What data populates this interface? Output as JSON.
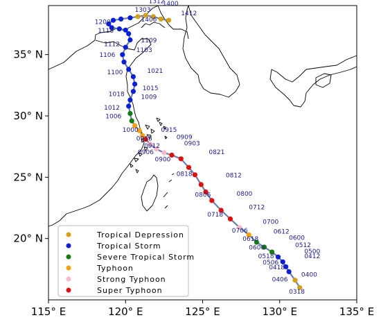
{
  "map": {
    "lon_range": [
      115,
      135
    ],
    "lat_range": [
      15,
      39
    ],
    "lat_ticks": [
      {
        "value": 35,
        "label": "35° N"
      },
      {
        "value": 30,
        "label": "30° N"
      },
      {
        "value": 25,
        "label": "25° N"
      },
      {
        "value": 20,
        "label": "20° N"
      }
    ],
    "lon_ticks": [
      {
        "value": 115,
        "label": "115° E"
      },
      {
        "value": 120,
        "label": "120° E"
      },
      {
        "value": 125,
        "label": "125° E"
      },
      {
        "value": 130,
        "label": "130° E"
      },
      {
        "value": 135,
        "label": "135° E"
      }
    ]
  },
  "legend": {
    "items": [
      {
        "key": "TD",
        "label": "Tropical Depression",
        "color": "#d4a017"
      },
      {
        "key": "TS",
        "label": "Tropical Storm",
        "color": "#0a1fd6"
      },
      {
        "key": "STS",
        "label": "Severe Tropical Storm",
        "color": "#137d13"
      },
      {
        "key": "TY",
        "label": "Typhoon",
        "color": "#f5a20a"
      },
      {
        "key": "STY",
        "label": "Strong Typhoon",
        "color": "#f7b9c9"
      },
      {
        "key": "SuperTY",
        "label": "Super Typhoon",
        "color": "#e01010"
      }
    ]
  },
  "track": {
    "line_color": "#6a7fa8",
    "points": [
      {
        "lon": 131.3,
        "lat": 16.0,
        "cat": "TD"
      },
      {
        "lon": 131.0,
        "lat": 16.6,
        "cat": "TD"
      },
      {
        "lon": 130.6,
        "lat": 17.3,
        "cat": "TS"
      },
      {
        "lon": 130.4,
        "lat": 17.7,
        "cat": "TS"
      },
      {
        "lon": 130.2,
        "lat": 18.1,
        "cat": "TS"
      },
      {
        "lon": 129.9,
        "lat": 18.5,
        "cat": "TS"
      },
      {
        "lon": 129.5,
        "lat": 18.9,
        "cat": "STS"
      },
      {
        "lon": 129.0,
        "lat": 19.3,
        "cat": "STS"
      },
      {
        "lon": 128.5,
        "lat": 19.7,
        "cat": "STS"
      },
      {
        "lon": 128.0,
        "lat": 20.3,
        "cat": "TY"
      },
      {
        "lon": 127.4,
        "lat": 20.9,
        "cat": "STY"
      },
      {
        "lon": 126.8,
        "lat": 21.6,
        "cat": "SuperTY"
      },
      {
        "lon": 126.2,
        "lat": 22.3,
        "cat": "SuperTY"
      },
      {
        "lon": 125.6,
        "lat": 23.1,
        "cat": "SuperTY"
      },
      {
        "lon": 125.2,
        "lat": 23.8,
        "cat": "SuperTY"
      },
      {
        "lon": 124.9,
        "lat": 24.4,
        "cat": "SuperTY"
      },
      {
        "lon": 124.5,
        "lat": 25.2,
        "cat": "SuperTY"
      },
      {
        "lon": 124.1,
        "lat": 25.8,
        "cat": "SuperTY"
      },
      {
        "lon": 123.6,
        "lat": 26.5,
        "cat": "SuperTY"
      },
      {
        "lon": 123.0,
        "lat": 26.8,
        "cat": "SuperTY"
      },
      {
        "lon": 122.5,
        "lat": 27.0,
        "cat": "STY"
      },
      {
        "lon": 122.0,
        "lat": 27.3,
        "cat": "STY"
      },
      {
        "lon": 121.6,
        "lat": 27.7,
        "cat": "STY"
      },
      {
        "lon": 121.3,
        "lat": 28.1,
        "cat": "SuperTY"
      },
      {
        "lon": 121.1,
        "lat": 28.4,
        "cat": "TY"
      },
      {
        "lon": 120.9,
        "lat": 28.8,
        "cat": "TY"
      },
      {
        "lon": 120.6,
        "lat": 29.2,
        "cat": "TY"
      },
      {
        "lon": 120.4,
        "lat": 29.6,
        "cat": "STS"
      },
      {
        "lon": 120.3,
        "lat": 30.2,
        "cat": "STS"
      },
      {
        "lon": 120.2,
        "lat": 30.8,
        "cat": "TS"
      },
      {
        "lon": 120.3,
        "lat": 31.3,
        "cat": "TS"
      },
      {
        "lon": 120.5,
        "lat": 32.0,
        "cat": "TS"
      },
      {
        "lon": 120.6,
        "lat": 32.6,
        "cat": "TS"
      },
      {
        "lon": 120.5,
        "lat": 33.2,
        "cat": "TS"
      },
      {
        "lon": 120.2,
        "lat": 33.8,
        "cat": "TS"
      },
      {
        "lon": 119.9,
        "lat": 34.4,
        "cat": "TS"
      },
      {
        "lon": 119.8,
        "lat": 35.0,
        "cat": "TS"
      },
      {
        "lon": 120.0,
        "lat": 35.6,
        "cat": "TS"
      },
      {
        "lon": 120.3,
        "lat": 36.2,
        "cat": "TS"
      },
      {
        "lon": 120.2,
        "lat": 36.7,
        "cat": "TS"
      },
      {
        "lon": 120.0,
        "lat": 37.0,
        "cat": "TS"
      },
      {
        "lon": 119.6,
        "lat": 37.1,
        "cat": "TS"
      },
      {
        "lon": 119.1,
        "lat": 37.2,
        "cat": "TS"
      },
      {
        "lon": 118.9,
        "lat": 37.5,
        "cat": "TS"
      },
      {
        "lon": 119.2,
        "lat": 37.8,
        "cat": "TS"
      },
      {
        "lon": 119.7,
        "lat": 37.9,
        "cat": "TS"
      },
      {
        "lon": 120.3,
        "lat": 38.0,
        "cat": "TS"
      },
      {
        "lon": 120.8,
        "lat": 38.1,
        "cat": "TD"
      },
      {
        "lon": 121.3,
        "lat": 38.2,
        "cat": "TD"
      },
      {
        "lon": 121.8,
        "lat": 38.1,
        "cat": "TD"
      },
      {
        "lon": 122.3,
        "lat": 37.9,
        "cat": "TD"
      },
      {
        "lon": 122.8,
        "lat": 37.8,
        "cat": "TD"
      }
    ]
  },
  "time_labels": [
    {
      "text": "0318",
      "lon": 130.6,
      "lat": 15.5
    },
    {
      "text": "0400",
      "lon": 131.4,
      "lat": 16.9
    },
    {
      "text": "0406",
      "lon": 129.5,
      "lat": 16.5
    },
    {
      "text": "0412",
      "lon": 131.6,
      "lat": 18.4
    },
    {
      "text": "0418",
      "lon": 129.3,
      "lat": 17.5
    },
    {
      "text": "0500",
      "lon": 131.6,
      "lat": 18.8
    },
    {
      "text": "0506",
      "lon": 128.9,
      "lat": 17.9
    },
    {
      "text": "0512",
      "lon": 131.0,
      "lat": 19.3
    },
    {
      "text": "0518",
      "lon": 128.6,
      "lat": 18.4
    },
    {
      "text": "0600",
      "lon": 130.6,
      "lat": 19.9
    },
    {
      "text": "0606",
      "lon": 128.0,
      "lat": 19.1
    },
    {
      "text": "0612",
      "lon": 129.6,
      "lat": 20.4
    },
    {
      "text": "0618",
      "lon": 127.6,
      "lat": 19.8
    },
    {
      "text": "0700",
      "lon": 128.9,
      "lat": 21.2
    },
    {
      "text": "0706",
      "lon": 126.9,
      "lat": 20.5
    },
    {
      "text": "0712",
      "lon": 128.0,
      "lat": 22.4
    },
    {
      "text": "0718",
      "lon": 125.3,
      "lat": 21.8
    },
    {
      "text": "0800",
      "lon": 127.2,
      "lat": 23.5
    },
    {
      "text": "0806",
      "lon": 124.5,
      "lat": 23.4
    },
    {
      "text": "0812",
      "lon": 126.5,
      "lat": 25.0
    },
    {
      "text": "0818",
      "lon": 123.3,
      "lat": 25.1
    },
    {
      "text": "0821",
      "lon": 125.4,
      "lat": 26.9
    },
    {
      "text": "0900",
      "lon": 121.9,
      "lat": 26.3
    },
    {
      "text": "0903",
      "lon": 123.8,
      "lat": 27.6
    },
    {
      "text": "0906",
      "lon": 120.8,
      "lat": 26.9
    },
    {
      "text": "0909",
      "lon": 123.3,
      "lat": 28.1
    },
    {
      "text": "0912",
      "lon": 121.2,
      "lat": 27.4
    },
    {
      "text": "0915",
      "lon": 122.3,
      "lat": 28.7
    },
    {
      "text": "0918",
      "lon": 120.7,
      "lat": 28.0
    },
    {
      "text": "1000",
      "lon": 119.8,
      "lat": 28.7
    },
    {
      "text": "1006",
      "lon": 118.7,
      "lat": 29.8
    },
    {
      "text": "1012",
      "lon": 118.6,
      "lat": 30.5
    },
    {
      "text": "1018",
      "lon": 118.9,
      "lat": 31.6
    },
    {
      "text": "1009",
      "lon": 121.0,
      "lat": 31.4
    },
    {
      "text": "1015",
      "lon": 121.1,
      "lat": 32.1
    },
    {
      "text": "1021",
      "lon": 121.4,
      "lat": 33.5
    },
    {
      "text": "1100",
      "lon": 118.8,
      "lat": 33.4
    },
    {
      "text": "1106",
      "lon": 118.3,
      "lat": 34.8
    },
    {
      "text": "1112",
      "lon": 118.6,
      "lat": 35.7
    },
    {
      "text": "1103",
      "lon": 120.7,
      "lat": 35.2
    },
    {
      "text": "1109",
      "lon": 121.0,
      "lat": 36.0
    },
    {
      "text": "1118",
      "lon": 118.2,
      "lat": 36.8
    },
    {
      "text": "1200",
      "lon": 118.0,
      "lat": 37.5
    },
    {
      "text": "1303",
      "lon": 120.6,
      "lat": 38.5
    },
    {
      "text": "1312",
      "lon": 121.5,
      "lat": 39.2
    },
    {
      "text": "1400",
      "lon": 122.4,
      "lat": 39.0
    },
    {
      "text": "1406",
      "lon": 121.0,
      "lat": 37.7
    },
    {
      "text": "1412",
      "lon": 123.6,
      "lat": 38.2
    }
  ]
}
